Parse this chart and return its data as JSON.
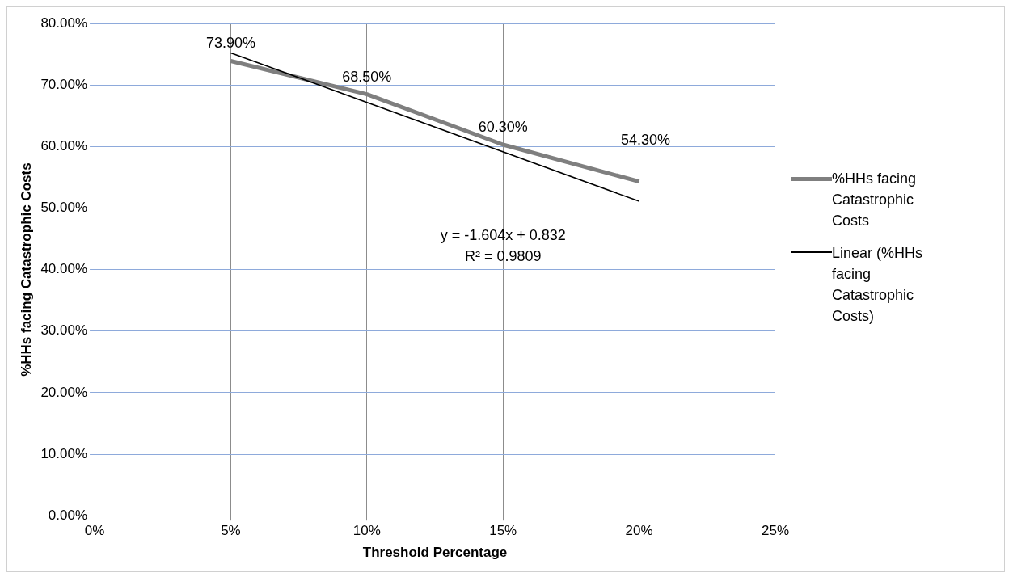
{
  "chart_data": {
    "type": "line",
    "xlabel": "Threshold Percentage",
    "ylabel": "%HHs facing Catastrophic Costs",
    "xlim": [
      0,
      25
    ],
    "xticks": [
      {
        "value": 0,
        "label": "0%"
      },
      {
        "value": 5,
        "label": "5%"
      },
      {
        "value": 10,
        "label": "10%"
      },
      {
        "value": 15,
        "label": "15%"
      },
      {
        "value": 20,
        "label": "20%"
      },
      {
        "value": 25,
        "label": "25%"
      }
    ],
    "ylim": [
      0,
      80
    ],
    "yticks": [
      {
        "value": 0,
        "label": "0.00%"
      },
      {
        "value": 10,
        "label": "10.00%"
      },
      {
        "value": 20,
        "label": "20.00%"
      },
      {
        "value": 30,
        "label": "30.00%"
      },
      {
        "value": 40,
        "label": "40.00%"
      },
      {
        "value": 50,
        "label": "50.00%"
      },
      {
        "value": 60,
        "label": "60.00%"
      },
      {
        "value": 70,
        "label": "70.00%"
      },
      {
        "value": 80,
        "label": "80.00%"
      }
    ],
    "grid": true,
    "legend": "right",
    "marker": "none",
    "series": [
      {
        "name": "%HHs facing Catastrophic Costs",
        "color": "#7f7f7f",
        "x": [
          5,
          10,
          15,
          20
        ],
        "values": [
          73.9,
          68.5,
          60.3,
          54.3
        ],
        "value_labels": [
          "73.90%",
          "68.50%",
          "60.30%",
          "54.30%"
        ]
      },
      {
        "name": "Linear (%HHs facing Catastrophic Costs)",
        "color": "#000000",
        "x": [
          5,
          20
        ],
        "values": [
          75.2,
          51.1
        ]
      }
    ],
    "annotations": [
      "y = -1.604x + 0.832",
      "R² = 0.9809"
    ]
  }
}
